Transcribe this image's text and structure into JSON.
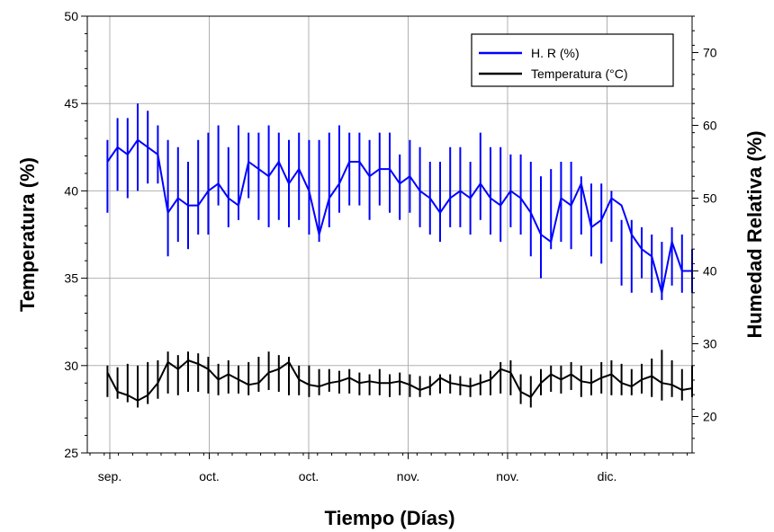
{
  "chart_data": {
    "type": "line",
    "title": "",
    "xlabel": "Tiempo (Días)",
    "ylabel_left": "Temperatura (%)",
    "ylabel_right": "Humedad Relativa (%)",
    "x_tick_labels": [
      "sep.",
      "oct.",
      "oct.",
      "nov.",
      "nov.",
      "dic."
    ],
    "xlim": [
      0,
      60
    ],
    "y_left": {
      "lim": [
        25,
        50
      ],
      "ticks": [
        25,
        30,
        35,
        40,
        45,
        50
      ]
    },
    "y_right": {
      "lim": [
        15,
        75
      ],
      "ticks": [
        20,
        30,
        40,
        50,
        60,
        70
      ]
    },
    "grid": true,
    "legend_position": "top-right",
    "series": [
      {
        "name": "H. R (%)",
        "axis": "right",
        "color": "#0000ff",
        "x": [
          2,
          3,
          4,
          5,
          6,
          7,
          8,
          9,
          10,
          11,
          12,
          13,
          14,
          15,
          16,
          17,
          18,
          19,
          20,
          21,
          22,
          23,
          24,
          25,
          26,
          27,
          28,
          29,
          30,
          31,
          32,
          33,
          34,
          35,
          36,
          37,
          38,
          39,
          40,
          41,
          42,
          43,
          44,
          45,
          46,
          47,
          48,
          49,
          50,
          51,
          52,
          53,
          54,
          55,
          56,
          57,
          58,
          59,
          60
        ],
        "mid": [
          55,
          57,
          56,
          58,
          57,
          56,
          48,
          50,
          49,
          49,
          51,
          52,
          50,
          49,
          55,
          54,
          53,
          55,
          52,
          54,
          51,
          45,
          50,
          52,
          55,
          55,
          53,
          54,
          54,
          52,
          53,
          51,
          50,
          48,
          50,
          51,
          50,
          52,
          50,
          49,
          51,
          50,
          48,
          45,
          44,
          50,
          49,
          52,
          46,
          47,
          50,
          49,
          45,
          43,
          42,
          37,
          44,
          40,
          40
        ],
        "hi": [
          58,
          61,
          61,
          63,
          62,
          60,
          58,
          57,
          55,
          58,
          59,
          60,
          57,
          60,
          59,
          59,
          60,
          59,
          58,
          59,
          58,
          58,
          59,
          60,
          59,
          59,
          58,
          59,
          59,
          56,
          58,
          57,
          55,
          55,
          57,
          57,
          55,
          59,
          57,
          57,
          56,
          56,
          55,
          53,
          54,
          55,
          55,
          53,
          52,
          52,
          51,
          47,
          47,
          46,
          45,
          44,
          46,
          45,
          43
        ],
        "lo": [
          48,
          51,
          50,
          51,
          52,
          52,
          42,
          44,
          43,
          45,
          45,
          49,
          46,
          47,
          50,
          47,
          46,
          47,
          46,
          47,
          45,
          44,
          46,
          48,
          49,
          49,
          47,
          49,
          48,
          47,
          48,
          46,
          45,
          44,
          46,
          46,
          45,
          47,
          45,
          44,
          46,
          45,
          42,
          39,
          43,
          44,
          43,
          45,
          42,
          41,
          44,
          38,
          37,
          39,
          37,
          36,
          38,
          37,
          37
        ]
      },
      {
        "name": "Temperatura (°C)",
        "axis": "left",
        "color": "#000000",
        "x": [
          2,
          3,
          4,
          5,
          6,
          7,
          8,
          9,
          10,
          11,
          12,
          13,
          14,
          15,
          16,
          17,
          18,
          19,
          20,
          21,
          22,
          23,
          24,
          25,
          26,
          27,
          28,
          29,
          30,
          31,
          32,
          33,
          34,
          35,
          36,
          37,
          38,
          39,
          40,
          41,
          42,
          43,
          44,
          45,
          46,
          47,
          48,
          49,
          50,
          51,
          52,
          53,
          54,
          55,
          56,
          57,
          58,
          59,
          60
        ],
        "mid": [
          29.6,
          28.5,
          28.3,
          28.0,
          28.3,
          29.0,
          30.2,
          29.8,
          30.3,
          30.1,
          29.8,
          29.2,
          29.5,
          29.2,
          28.9,
          29.0,
          29.6,
          29.8,
          30.2,
          29.2,
          28.9,
          28.8,
          29.0,
          29.1,
          29.3,
          29.0,
          29.1,
          29.0,
          29.0,
          29.1,
          28.9,
          28.6,
          28.8,
          29.3,
          29.0,
          28.9,
          28.8,
          29.0,
          29.2,
          29.8,
          29.6,
          28.5,
          28.2,
          29.0,
          29.5,
          29.2,
          29.5,
          29.1,
          29.0,
          29.3,
          29.5,
          29.0,
          28.8,
          29.2,
          29.4,
          29.0,
          28.9,
          28.6,
          28.7
        ],
        "hi": [
          30.0,
          29.9,
          30.1,
          30.0,
          30.2,
          30.3,
          30.8,
          30.6,
          30.8,
          30.7,
          30.5,
          30.1,
          30.3,
          30.0,
          30.2,
          30.5,
          30.8,
          30.6,
          30.5,
          30.0,
          30.0,
          29.8,
          29.8,
          29.7,
          29.8,
          29.6,
          29.5,
          29.8,
          29.5,
          29.6,
          29.5,
          29.4,
          29.4,
          29.5,
          29.5,
          29.4,
          29.3,
          29.5,
          29.7,
          30.2,
          30.3,
          29.5,
          29.4,
          29.8,
          30.0,
          30.0,
          30.2,
          30.0,
          29.8,
          30.2,
          30.3,
          30.1,
          29.8,
          30.1,
          30.4,
          30.9,
          30.3,
          29.8,
          30.0
        ],
        "lo": [
          28.2,
          28.1,
          27.9,
          27.6,
          27.8,
          28.1,
          28.4,
          28.3,
          28.5,
          28.5,
          28.4,
          28.3,
          28.4,
          28.4,
          28.3,
          28.5,
          28.6,
          28.5,
          28.3,
          28.3,
          28.2,
          28.3,
          28.5,
          28.4,
          28.4,
          28.3,
          28.3,
          28.3,
          28.2,
          28.3,
          28.2,
          28.2,
          28.3,
          28.4,
          28.4,
          28.3,
          28.2,
          28.3,
          28.3,
          28.4,
          28.3,
          27.8,
          27.6,
          28.3,
          28.5,
          28.4,
          28.6,
          28.2,
          28.3,
          28.4,
          28.3,
          28.3,
          28.3,
          28.4,
          28.2,
          28.0,
          28.2,
          28.0,
          28.2
        ]
      }
    ]
  }
}
